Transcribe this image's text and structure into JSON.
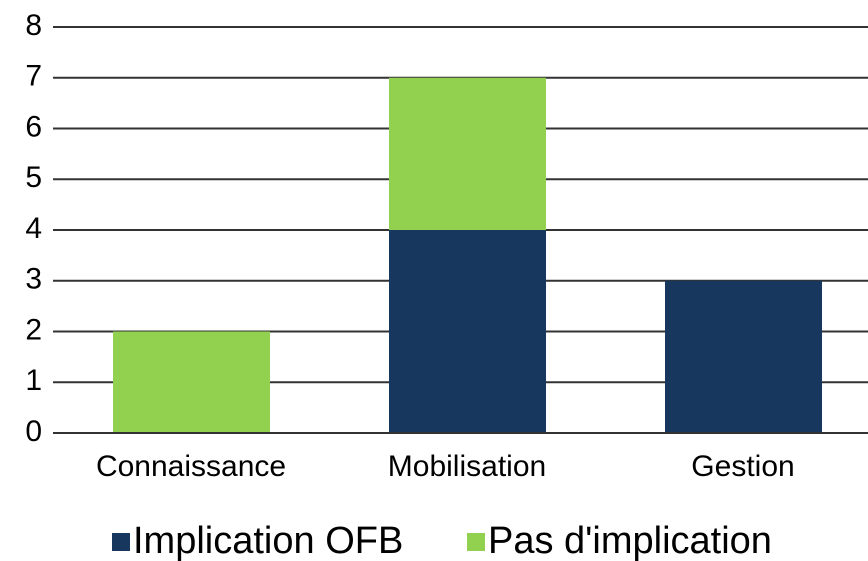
{
  "chart_data": {
    "type": "stacked_bar",
    "categories": [
      "Connaissance",
      "Mobilisation",
      "Gestion"
    ],
    "series": [
      {
        "name": "Implication OFB",
        "color": "#17375e",
        "values": [
          0,
          4,
          3
        ]
      },
      {
        "name": "Pas d'implication",
        "color": "#92d050",
        "values": [
          2,
          3,
          0
        ]
      }
    ],
    "ylim": [
      0,
      8
    ],
    "yticks": [
      0,
      1,
      2,
      3,
      4,
      5,
      6,
      7,
      8
    ],
    "grid": true,
    "legend": "bottom"
  }
}
